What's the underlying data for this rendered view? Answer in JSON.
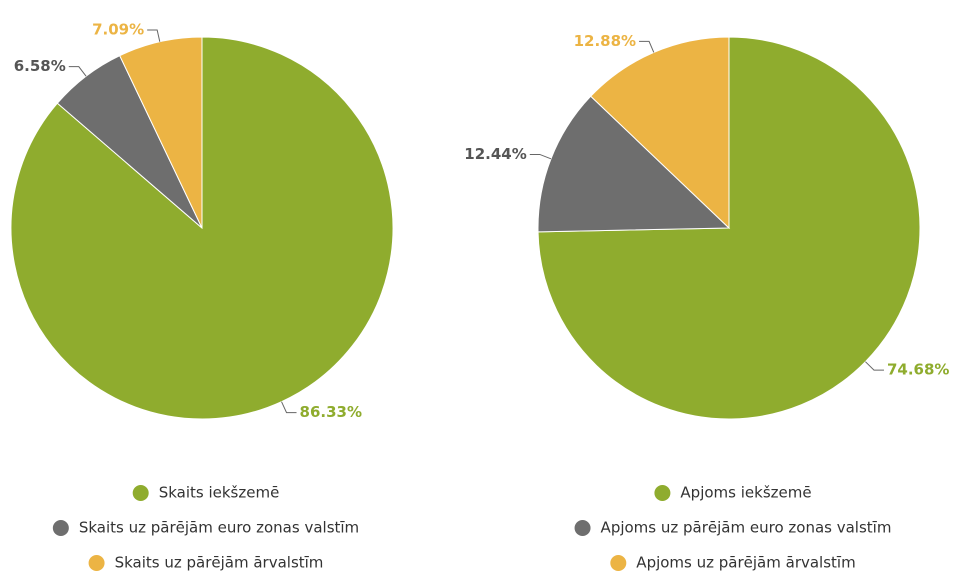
{
  "chart_data": [
    {
      "type": "pie",
      "categories": [
        "Skaits iekšzemē",
        "Skaits uz pārējām euro zonas valstīm",
        "Skaits uz pārējām ārvalstīm"
      ],
      "values": [
        86.33,
        6.58,
        7.09
      ],
      "value_labels": [
        "86.33%",
        "6.58%",
        "7.09%"
      ],
      "colors": [
        "#8fac2e",
        "#6e6e6e",
        "#ecb444"
      ]
    },
    {
      "type": "pie",
      "categories": [
        "Apjoms iekšzemē",
        "Apjoms uz pārējām euro zonas valstīm",
        "Apjoms uz pārējām ārvalstīm"
      ],
      "values": [
        74.68,
        12.44,
        12.88
      ],
      "value_labels": [
        "74.68%",
        "12.44%",
        "12.88%"
      ],
      "colors": [
        "#8fac2e",
        "#6e6e6e",
        "#ecb444"
      ]
    }
  ]
}
